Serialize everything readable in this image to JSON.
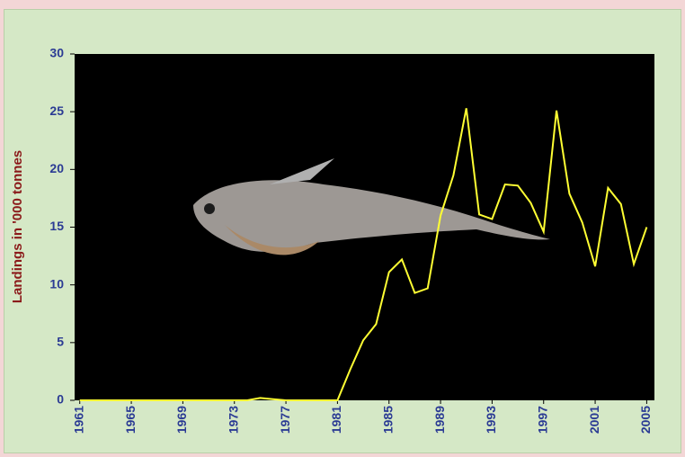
{
  "chart_data": {
    "type": "line",
    "y_label": "Landings in '000 tonnes",
    "x": [
      1961,
      1962,
      1963,
      1964,
      1965,
      1966,
      1967,
      1968,
      1969,
      1970,
      1971,
      1972,
      1973,
      1974,
      1975,
      1976,
      1977,
      1978,
      1979,
      1980,
      1981,
      1982,
      1983,
      1984,
      1985,
      1986,
      1987,
      1988,
      1989,
      1990,
      1991,
      1992,
      1993,
      1994,
      1995,
      1996,
      1997,
      1998,
      1999,
      2000,
      2001,
      2002,
      2003,
      2004,
      2005
    ],
    "series": [
      {
        "color": "#ffff33",
        "values": [
          0,
          0,
          0,
          0,
          0,
          0,
          0,
          0,
          0,
          0,
          0,
          0,
          0,
          0,
          0.2,
          0.1,
          0,
          0,
          0,
          0,
          0,
          2.7,
          5.2,
          6.6,
          11.1,
          12.2,
          9.3,
          9.7,
          16,
          19.5,
          25.3,
          16.1,
          15.7,
          18.7,
          18.6,
          17.1,
          14.6,
          25.1,
          17.9,
          15.4,
          11.6,
          18.4,
          17,
          11.8,
          15
        ]
      }
    ],
    "xlim": [
      1960.6,
      2005.6
    ],
    "xticks": [
      1961,
      1965,
      1969,
      1973,
      1977,
      1981,
      1985,
      1989,
      1993,
      1997,
      2001,
      2005
    ],
    "ylim": [
      0,
      30
    ],
    "yticks": [
      0,
      5,
      10,
      15,
      20,
      25,
      30
    ]
  }
}
